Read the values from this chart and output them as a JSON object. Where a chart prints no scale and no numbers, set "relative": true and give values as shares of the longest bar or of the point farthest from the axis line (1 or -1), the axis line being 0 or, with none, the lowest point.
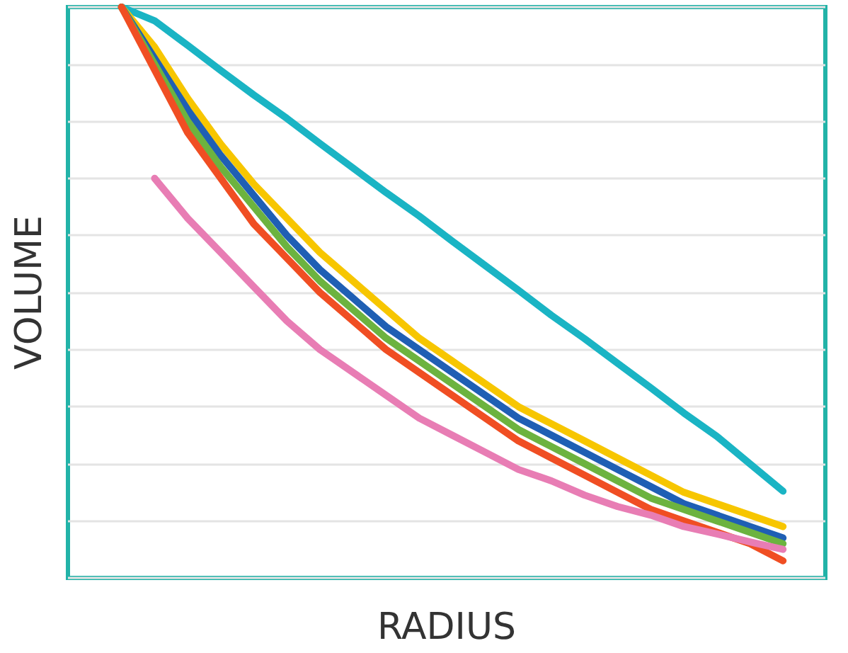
{
  "chart_data": {
    "type": "line",
    "xlabel": "RADIUS",
    "ylabel": "VOLUME",
    "relative": true,
    "grid": "y",
    "marker": "none",
    "line_style": "solid",
    "categories": [
      null,
      null,
      null,
      null,
      null,
      null,
      null,
      null,
      null,
      null,
      null,
      null,
      null,
      null,
      null,
      null,
      null,
      null,
      null,
      null,
      null
    ],
    "series": [
      {
        "color": "#1ab4c4",
        "values": [
          1.0,
          0.976,
          0.933,
          0.889,
          0.846,
          0.805,
          0.761,
          0.718,
          0.675,
          0.634,
          0.59,
          0.547,
          0.504,
          0.46,
          0.419,
          0.376,
          0.333,
          0.289,
          0.248,
          0.2,
          0.152
        ]
      },
      {
        "color": "#f7c600",
        "values": [
          1.0,
          0.93,
          0.84,
          0.76,
          0.69,
          0.63,
          0.57,
          0.52,
          0.47,
          0.42,
          0.38,
          0.34,
          0.3,
          0.27,
          0.24,
          0.21,
          0.18,
          0.15,
          0.13,
          0.11,
          0.09
        ]
      },
      {
        "color": "#1f5fb4",
        "values": [
          1.0,
          0.91,
          0.82,
          0.74,
          0.67,
          0.6,
          0.54,
          0.49,
          0.44,
          0.4,
          0.36,
          0.32,
          0.28,
          0.25,
          0.22,
          0.19,
          0.16,
          0.13,
          0.11,
          0.09,
          0.07
        ]
      },
      {
        "color": "#6cb33f",
        "values": [
          1.0,
          0.9,
          0.8,
          0.72,
          0.65,
          0.58,
          0.52,
          0.47,
          0.42,
          0.38,
          0.34,
          0.3,
          0.26,
          0.23,
          0.2,
          0.17,
          0.14,
          0.12,
          0.1,
          0.08,
          0.06
        ]
      },
      {
        "color": "#f04e23",
        "values": [
          1.0,
          0.89,
          0.78,
          0.7,
          0.62,
          0.56,
          0.5,
          0.45,
          0.4,
          0.36,
          0.32,
          0.28,
          0.24,
          0.21,
          0.18,
          0.15,
          0.12,
          0.1,
          0.08,
          0.06,
          0.03
        ]
      },
      {
        "color": "#e87db4",
        "values": [
          null,
          0.7,
          0.63,
          0.57,
          0.51,
          0.45,
          0.4,
          0.36,
          0.32,
          0.28,
          0.25,
          0.22,
          0.19,
          0.17,
          0.145,
          0.125,
          0.11,
          0.09,
          0.077,
          0.063,
          0.05
        ]
      }
    ]
  }
}
